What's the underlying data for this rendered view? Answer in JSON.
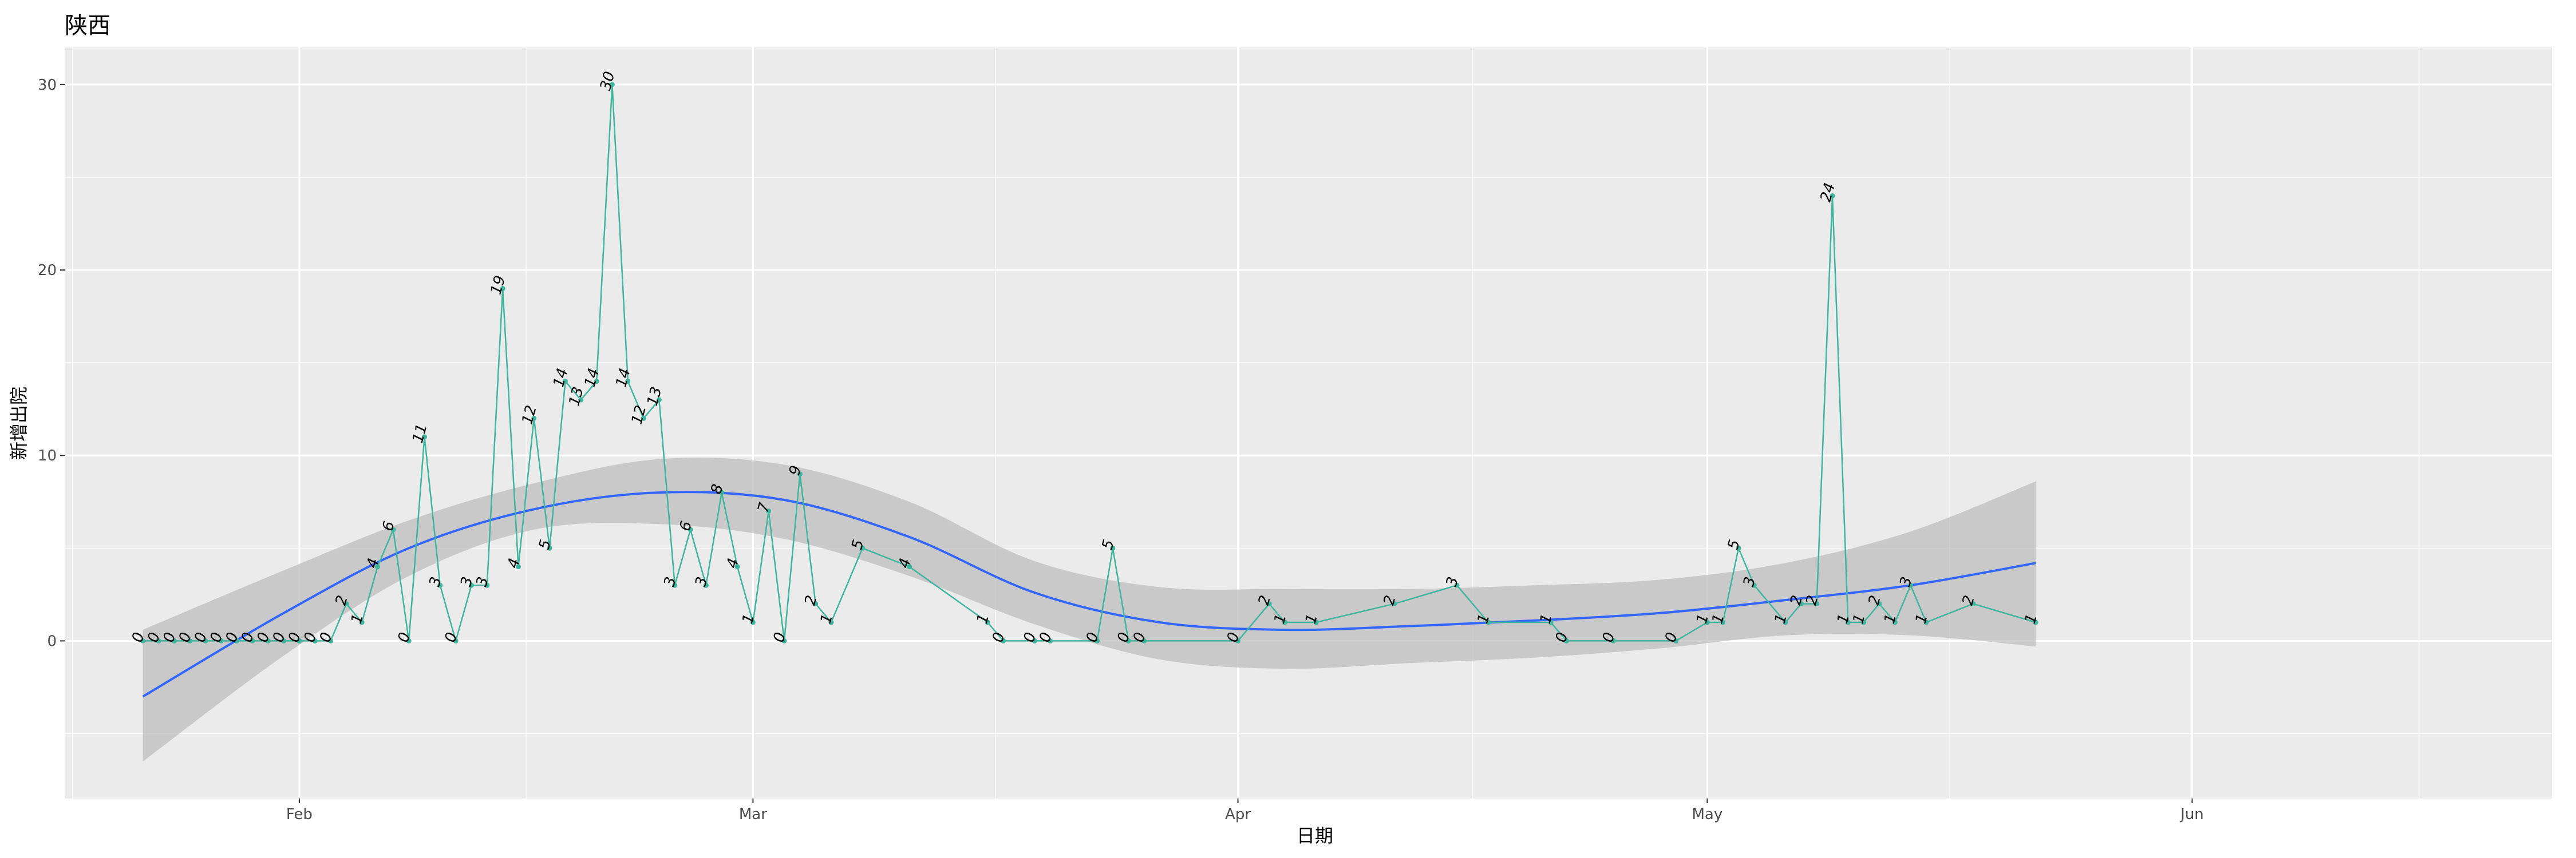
{
  "chart_data": {
    "type": "line",
    "title": "陕西",
    "xlabel": "日期",
    "ylabel": "新增出院",
    "x_ticks": [
      {
        "date": "2020-02-01",
        "label": "Feb"
      },
      {
        "date": "2020-03-01",
        "label": "Mar"
      },
      {
        "date": "2020-04-01",
        "label": "Apr"
      },
      {
        "date": "2020-05-01",
        "label": "May"
      },
      {
        "date": "2020-06-01",
        "label": "Jun"
      }
    ],
    "xlim": [
      "2020-01-17",
      "2020-06-24"
    ],
    "ylim": [
      -8.5,
      32
    ],
    "y_ticks": [
      0,
      10,
      20,
      30
    ],
    "grid": true,
    "colors": {
      "series": "#3fb59e",
      "smooth": "#3366ff",
      "band": "#bdbdbd",
      "panel": "#ebebeb",
      "grid": "#ffffff"
    },
    "series": [
      {
        "x": [
          "2020-01-22",
          "2020-01-23",
          "2020-01-24",
          "2020-01-25",
          "2020-01-26",
          "2020-01-27",
          "2020-01-28",
          "2020-01-29",
          "2020-01-30",
          "2020-01-31",
          "2020-02-01",
          "2020-02-02",
          "2020-02-03",
          "2020-02-04",
          "2020-02-05",
          "2020-02-06",
          "2020-02-07",
          "2020-02-08",
          "2020-02-09",
          "2020-02-10",
          "2020-02-11",
          "2020-02-12",
          "2020-02-13",
          "2020-02-14",
          "2020-02-15",
          "2020-02-16",
          "2020-02-17",
          "2020-02-18",
          "2020-02-19",
          "2020-02-20",
          "2020-02-21",
          "2020-02-22",
          "2020-02-23",
          "2020-02-24",
          "2020-02-25",
          "2020-02-26",
          "2020-02-27",
          "2020-02-28",
          "2020-02-29",
          "2020-03-01",
          "2020-03-02",
          "2020-03-03",
          "2020-03-04",
          "2020-03-05",
          "2020-03-06",
          "2020-03-08",
          "2020-03-11",
          "2020-03-16",
          "2020-03-17",
          "2020-03-19",
          "2020-03-20",
          "2020-03-23",
          "2020-03-24",
          "2020-03-25",
          "2020-03-26",
          "2020-04-01",
          "2020-04-03",
          "2020-04-04",
          "2020-04-06",
          "2020-04-11",
          "2020-04-15",
          "2020-04-17",
          "2020-04-21",
          "2020-04-22",
          "2020-04-25",
          "2020-04-29",
          "2020-05-01",
          "2020-05-02",
          "2020-05-03",
          "2020-05-04",
          "2020-05-06",
          "2020-05-07",
          "2020-05-08",
          "2020-05-09",
          "2020-05-10",
          "2020-05-11",
          "2020-05-12",
          "2020-05-13",
          "2020-05-14",
          "2020-05-15",
          "2020-05-18",
          "2020-05-22"
        ],
        "values": [
          0,
          0,
          0,
          0,
          0,
          0,
          0,
          0,
          0,
          0,
          0,
          0,
          0,
          2,
          1,
          4,
          6,
          0,
          11,
          3,
          0,
          3,
          3,
          19,
          4,
          12,
          5,
          14,
          13,
          14,
          30,
          14,
          12,
          13,
          3,
          6,
          3,
          8,
          4,
          1,
          7,
          0,
          9,
          2,
          1,
          5,
          4,
          1,
          0,
          0,
          0,
          0,
          5,
          0,
          0,
          0,
          2,
          1,
          1,
          2,
          3,
          1,
          1,
          0,
          0,
          0,
          1,
          1,
          5,
          3,
          1,
          2,
          2,
          24,
          1,
          1,
          2,
          1,
          3,
          1,
          2,
          1
        ]
      }
    ],
    "smooth": {
      "x": [
        "2020-01-22",
        "2020-01-31",
        "2020-02-08",
        "2020-02-16",
        "2020-02-24",
        "2020-03-03",
        "2020-03-11",
        "2020-03-19",
        "2020-03-27",
        "2020-04-04",
        "2020-04-12",
        "2020-04-20",
        "2020-04-28",
        "2020-05-06",
        "2020-05-14",
        "2020-05-22"
      ],
      "fit": [
        -3.0,
        1.5,
        5.0,
        7.1,
        8.0,
        7.6,
        5.6,
        2.6,
        1.0,
        0.6,
        0.8,
        1.1,
        1.5,
        2.2,
        3.0,
        4.2
      ],
      "lower": [
        -6.5,
        -0.8,
        3.5,
        6.0,
        6.3,
        5.5,
        3.5,
        0.9,
        -1.0,
        -1.5,
        -1.2,
        -0.9,
        -0.4,
        0.3,
        0.3,
        -0.3
      ],
      "upper": [
        0.6,
        3.8,
        6.5,
        8.5,
        9.8,
        9.5,
        7.5,
        4.3,
        2.9,
        2.8,
        2.8,
        3.0,
        3.3,
        4.2,
        5.9,
        8.6
      ]
    }
  }
}
